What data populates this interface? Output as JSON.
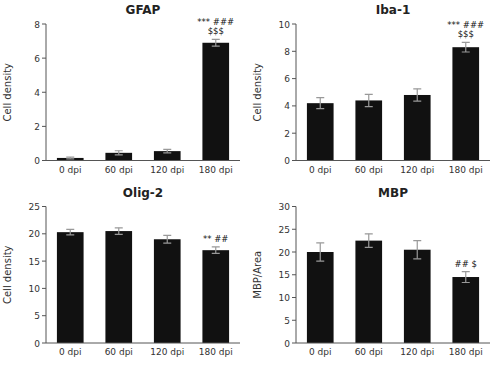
{
  "chart_data": [
    {
      "type": "bar",
      "title": "GFAP",
      "y_label": "Cell density",
      "categories": [
        "0 dpi",
        "60 dpi",
        "120 dpi",
        "180 dpi"
      ],
      "values": [
        0.15,
        0.45,
        0.55,
        6.9
      ],
      "errors": [
        0.05,
        0.12,
        0.1,
        0.2
      ],
      "color": "#111111",
      "ylim": [
        0,
        8
      ],
      "yticks": [
        0,
        2,
        4,
        6,
        8
      ],
      "annotations": [
        {
          "text": "*** ###\n$$$",
          "x": "180 dpi",
          "y": 7.32
        }
      ]
    },
    {
      "type": "bar",
      "title": "Iba-1",
      "y_label": "Cell density",
      "categories": [
        "0 dpi",
        "60 dpi",
        "120 dpi",
        "180 dpi"
      ],
      "values": [
        4.2,
        4.4,
        4.8,
        8.3
      ],
      "errors": [
        0.4,
        0.45,
        0.45,
        0.35
      ],
      "color": "#111111",
      "ylim": [
        0,
        10
      ],
      "yticks": [
        0,
        2,
        4,
        6,
        8,
        10
      ],
      "annotations": [
        {
          "text": "*** ###\n$$$",
          "x": "180 dpi",
          "y": 8.9
        }
      ]
    },
    {
      "type": "bar",
      "title": "Olig-2",
      "y_label": "Cell density",
      "categories": [
        "0 dpi",
        "60 dpi",
        "120 dpi",
        "180 dpi"
      ],
      "values": [
        20.3,
        20.5,
        19.0,
        17.0
      ],
      "errors": [
        0.5,
        0.6,
        0.7,
        0.6
      ],
      "color": "#111111",
      "ylim": [
        0,
        25
      ],
      "yticks": [
        0,
        5,
        10,
        15,
        20,
        25
      ],
      "annotations": [
        {
          "text": "** ##",
          "x": "180 dpi",
          "y": 18.1
        }
      ]
    },
    {
      "type": "bar",
      "title": "MBP",
      "y_label": "MBP/Area",
      "categories": [
        "0 dpi",
        "60 dpi",
        "120 dpi",
        "180 dpi"
      ],
      "values": [
        20.0,
        22.5,
        20.5,
        14.5
      ],
      "errors": [
        2.0,
        1.5,
        2.0,
        1.2
      ],
      "color": "#111111",
      "ylim": [
        0,
        30
      ],
      "yticks": [
        0,
        5,
        10,
        15,
        20,
        25,
        30
      ],
      "annotations": [
        {
          "text": "## $",
          "x": "180 dpi",
          "y": 16.2
        }
      ]
    }
  ]
}
